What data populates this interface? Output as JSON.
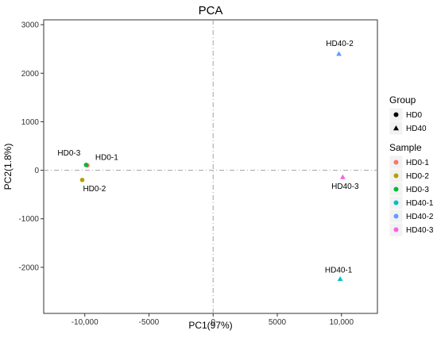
{
  "chart_data": {
    "type": "scatter",
    "title": "PCA",
    "xlabel": "PC1(97%)",
    "ylabel": "PC2(1.8%)",
    "xlim": [
      -13200,
      12800
    ],
    "ylim": [
      -2950,
      3100
    ],
    "x_ticks": [
      -10000,
      -5000,
      0,
      5000,
      10000
    ],
    "x_tick_labels": [
      "-10,000",
      "-5000",
      "0",
      "5000",
      "10,000"
    ],
    "y_ticks": [
      -2000,
      -1000,
      0,
      1000,
      2000,
      3000
    ],
    "y_tick_labels": [
      "-2000",
      "-1000",
      "0",
      "1000",
      "2000",
      "3000"
    ],
    "grid": false,
    "reference_lines": {
      "x": 0,
      "y": 0,
      "style": "dashdot"
    },
    "legend_position": "right",
    "points": [
      {
        "label": "HD0-1",
        "x": -9800,
        "y": 100,
        "group": "HD0"
      },
      {
        "label": "HD0-2",
        "x": -10200,
        "y": -200,
        "group": "HD0"
      },
      {
        "label": "HD0-3",
        "x": -9900,
        "y": 110,
        "group": "HD0"
      },
      {
        "label": "HD40-1",
        "x": 9900,
        "y": -2240,
        "group": "HD40"
      },
      {
        "label": "HD40-2",
        "x": 9800,
        "y": 2400,
        "group": "HD40"
      },
      {
        "label": "HD40-3",
        "x": 10100,
        "y": -140,
        "group": "HD40"
      }
    ],
    "legend": {
      "group_title": "Group",
      "groups": [
        {
          "name": "HD0",
          "shape": "circle"
        },
        {
          "name": "HD40",
          "shape": "triangle"
        }
      ],
      "sample_title": "Sample",
      "samples": [
        {
          "name": "HD0-1",
          "color": "#f8766d"
        },
        {
          "name": "HD0-2",
          "color": "#b79f00"
        },
        {
          "name": "HD0-3",
          "color": "#00ba38"
        },
        {
          "name": "HD40-1",
          "color": "#00bfc4"
        },
        {
          "name": "HD40-2",
          "color": "#619cff"
        },
        {
          "name": "HD40-3",
          "color": "#f564e3"
        }
      ]
    }
  }
}
